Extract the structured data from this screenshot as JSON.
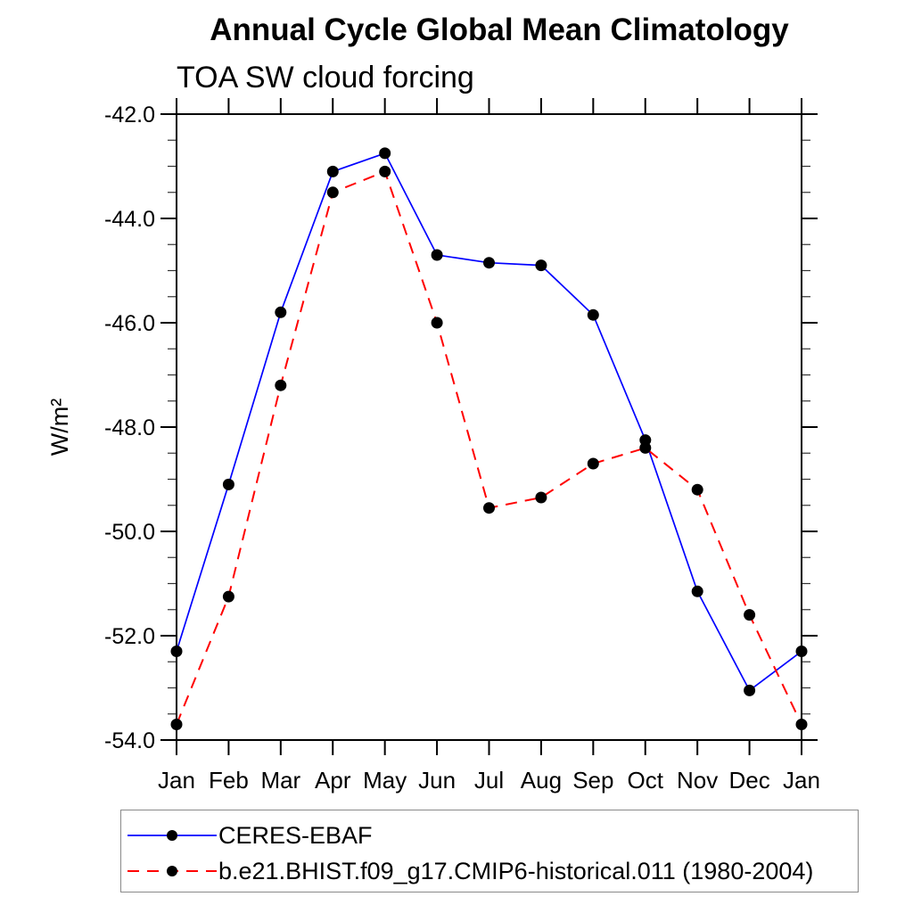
{
  "chart_data": {
    "type": "line",
    "title": "Annual Cycle Global Mean Climatology",
    "subtitle": "TOA SW cloud forcing",
    "ylabel": "W/m²",
    "xlabel": "",
    "categories": [
      "Jan",
      "Feb",
      "Mar",
      "Apr",
      "May",
      "Jun",
      "Jul",
      "Aug",
      "Sep",
      "Oct",
      "Nov",
      "Dec",
      "Jan"
    ],
    "ylim": [
      -54.0,
      -42.0
    ],
    "ytick_step": 2.0,
    "ytick_minor_step": 0.5,
    "ytick_labels": [
      "-42.0",
      "-44.0",
      "-46.0",
      "-48.0",
      "-50.0",
      "-52.0",
      "-54.0"
    ],
    "grid": false,
    "legend_position": "bottom",
    "series": [
      {
        "name": "CERES-EBAF",
        "color": "#0000ff",
        "style": "solid",
        "marker": "circle",
        "marker_color": "#000000",
        "values": [
          -52.3,
          -49.1,
          -45.8,
          -43.1,
          -42.75,
          -44.7,
          -44.85,
          -44.9,
          -45.85,
          -48.25,
          -51.15,
          -53.05,
          -52.3
        ]
      },
      {
        "name": "b.e21.BHIST.f09_g17.CMIP6-historical.011 (1980-2004)",
        "color": "#ff0000",
        "style": "dashed",
        "marker": "circle",
        "marker_color": "#000000",
        "values": [
          -53.7,
          -51.25,
          -47.2,
          -43.5,
          -43.1,
          -46.0,
          -49.55,
          -49.35,
          -48.7,
          -48.4,
          -49.2,
          -51.6,
          -53.7
        ]
      }
    ]
  },
  "colors": {
    "axis": "#000000",
    "minor_tick": "#333333",
    "text": "#000000",
    "legend_border": "#8a8a8a",
    "background": "#ffffff"
  }
}
